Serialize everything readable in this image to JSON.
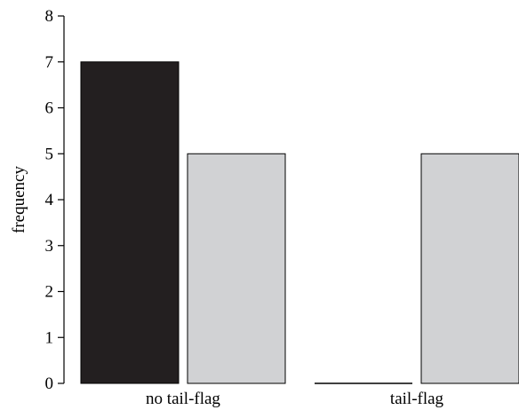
{
  "chart_data": {
    "type": "bar",
    "title": "",
    "xlabel": "",
    "ylabel": "frequency",
    "ylim": [
      0,
      8
    ],
    "yticks": [
      0,
      1,
      2,
      3,
      4,
      5,
      6,
      7,
      8
    ],
    "grid": false,
    "legend": "none",
    "categories": [
      "no tail-flag",
      "tail-flag"
    ],
    "series": [
      {
        "color": "#231f20",
        "values": [
          7,
          0
        ]
      },
      {
        "color": "#d1d2d4",
        "values": [
          5,
          5
        ]
      }
    ]
  }
}
